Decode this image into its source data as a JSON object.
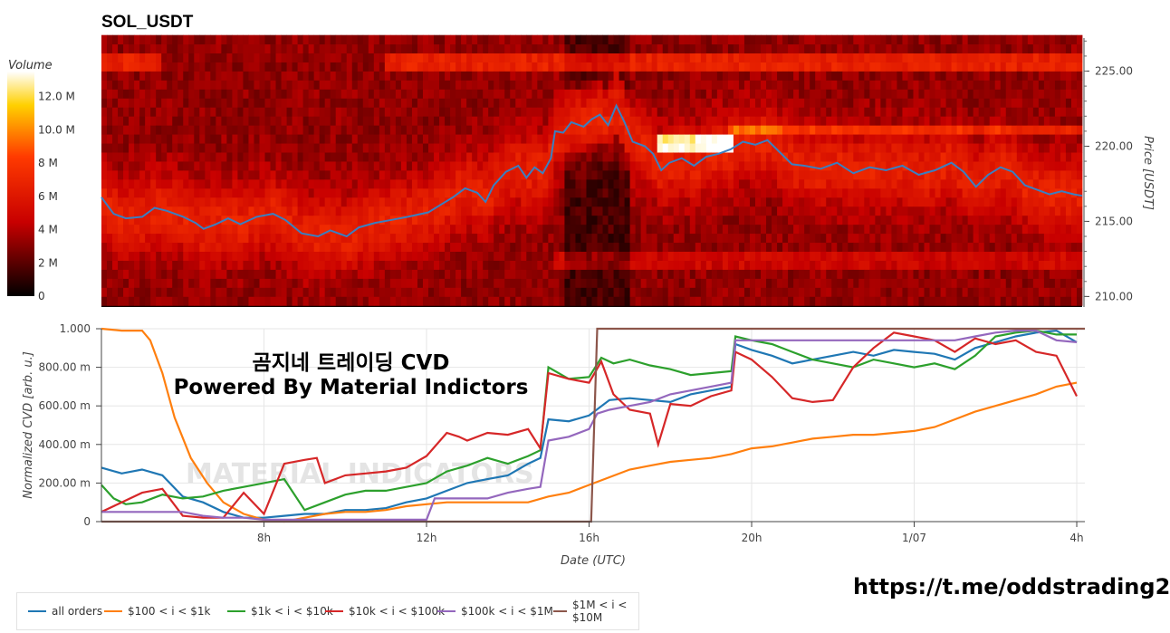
{
  "title": "SOL_USDT",
  "overlay": {
    "line1": "곰지네 트레이딩 CVD",
    "line2": "Powered By Material Indictors"
  },
  "watermark": "MATERIAL INDICATORS",
  "link": "https://t.me/oddstrading2",
  "colors": {
    "all_orders": "#1f77b4",
    "c100_1k": "#ff7f0e",
    "c1k_10k": "#2ca02c",
    "c10k_100k": "#d62728",
    "c100k_1m": "#9467bd",
    "c1m_10m": "#8c564b",
    "price_line": "#3a7fc1"
  },
  "chart_data": [
    {
      "type": "heatmap",
      "title": "SOL_USDT",
      "colorbar_label": "Volume",
      "colorbar_ticks": [
        "12.0 M",
        "10.0 M",
        "8 M",
        "6 M",
        "4 M",
        "2 M",
        "0"
      ],
      "colorbar_tick_values": [
        12,
        10,
        8,
        6,
        4,
        2,
        0
      ],
      "colorbar_range": [
        0,
        13.5
      ],
      "ylabel": "Price [USDT]",
      "y_ticks": [
        "225.00",
        "220.00",
        "215.00",
        "210.00"
      ],
      "y_tick_values": [
        225,
        220,
        215,
        210
      ],
      "ylim": [
        209.3,
        227.2
      ],
      "x_range": [
        4.0,
        28.0
      ],
      "price_series": [
        [
          4.0,
          216.6
        ],
        [
          4.3,
          215.5
        ],
        [
          4.6,
          215.2
        ],
        [
          5.0,
          215.3
        ],
        [
          5.3,
          215.9
        ],
        [
          5.6,
          215.7
        ],
        [
          6.0,
          215.3
        ],
        [
          6.3,
          214.9
        ],
        [
          6.5,
          214.5
        ],
        [
          6.8,
          214.8
        ],
        [
          7.1,
          215.2
        ],
        [
          7.4,
          214.8
        ],
        [
          7.8,
          215.3
        ],
        [
          8.2,
          215.5
        ],
        [
          8.5,
          215.1
        ],
        [
          8.9,
          214.2
        ],
        [
          9.3,
          214.0
        ],
        [
          9.6,
          214.4
        ],
        [
          10.0,
          214.0
        ],
        [
          10.3,
          214.6
        ],
        [
          10.7,
          214.9
        ],
        [
          11.1,
          215.1
        ],
        [
          11.5,
          215.3
        ],
        [
          12.0,
          215.6
        ],
        [
          12.3,
          216.1
        ],
        [
          12.6,
          216.6
        ],
        [
          12.9,
          217.2
        ],
        [
          13.2,
          216.9
        ],
        [
          13.4,
          216.3
        ],
        [
          13.6,
          217.4
        ],
        [
          13.9,
          218.3
        ],
        [
          14.2,
          218.7
        ],
        [
          14.4,
          217.9
        ],
        [
          14.6,
          218.6
        ],
        [
          14.8,
          218.2
        ],
        [
          15.0,
          219.2
        ],
        [
          15.1,
          221.0
        ],
        [
          15.3,
          220.9
        ],
        [
          15.5,
          221.6
        ],
        [
          15.8,
          221.3
        ],
        [
          16.0,
          221.8
        ],
        [
          16.2,
          222.1
        ],
        [
          16.4,
          221.4
        ],
        [
          16.6,
          222.7
        ],
        [
          16.8,
          221.6
        ],
        [
          17.0,
          220.3
        ],
        [
          17.3,
          220.0
        ],
        [
          17.5,
          219.5
        ],
        [
          17.7,
          218.4
        ],
        [
          17.9,
          218.9
        ],
        [
          18.2,
          219.2
        ],
        [
          18.5,
          218.7
        ],
        [
          18.8,
          219.3
        ],
        [
          19.1,
          219.5
        ],
        [
          19.4,
          219.8
        ],
        [
          19.7,
          220.3
        ],
        [
          20.0,
          220.1
        ],
        [
          20.3,
          220.4
        ],
        [
          20.6,
          219.6
        ],
        [
          20.9,
          218.8
        ],
        [
          21.2,
          218.7
        ],
        [
          21.6,
          218.5
        ],
        [
          22.0,
          218.9
        ],
        [
          22.4,
          218.2
        ],
        [
          22.8,
          218.6
        ],
        [
          23.2,
          218.4
        ],
        [
          23.6,
          218.7
        ],
        [
          24.0,
          218.1
        ],
        [
          24.4,
          218.4
        ],
        [
          24.8,
          218.9
        ],
        [
          25.1,
          218.3
        ],
        [
          25.4,
          217.3
        ],
        [
          25.7,
          218.1
        ],
        [
          26.0,
          218.6
        ],
        [
          26.3,
          218.3
        ],
        [
          26.6,
          217.4
        ],
        [
          26.9,
          217.1
        ],
        [
          27.2,
          216.8
        ],
        [
          27.5,
          217.0
        ],
        [
          27.8,
          216.8
        ],
        [
          28.0,
          216.7
        ]
      ]
    },
    {
      "type": "line",
      "xlabel": "Date (UTC)",
      "ylabel": "Normalized CVD [arb. u.]",
      "x_ticks": [
        "8h",
        "12h",
        "16h",
        "20h",
        "1/07",
        "4h"
      ],
      "x_tick_values": [
        8,
        12,
        16,
        20,
        24,
        28
      ],
      "xlim": [
        4.0,
        28.2
      ],
      "y_ticks": [
        "0",
        "200.00 m",
        "400.00 m",
        "600.00 m",
        "800.00 m",
        "1.000"
      ],
      "y_tick_values": [
        0,
        0.2,
        0.4,
        0.6,
        0.8,
        1.0
      ],
      "ylim": [
        0,
        1.0
      ],
      "legend_position": "bottom-left",
      "series": [
        {
          "name": "all orders",
          "color": "#1f77b4",
          "x": [
            4.0,
            4.5,
            5.0,
            5.5,
            6.0,
            6.5,
            7.0,
            7.5,
            8.0,
            8.5,
            9.0,
            9.5,
            10.0,
            10.5,
            11.0,
            11.5,
            12.0,
            12.5,
            13.0,
            13.5,
            14.0,
            14.5,
            14.8,
            15.0,
            15.5,
            16.0,
            16.5,
            17.0,
            17.5,
            18.0,
            18.5,
            19.0,
            19.5,
            19.6,
            20.0,
            20.5,
            21.0,
            21.5,
            22.0,
            22.5,
            23.0,
            23.5,
            24.0,
            24.5,
            25.0,
            25.5,
            26.0,
            26.5,
            27.0,
            27.5,
            28.0
          ],
          "y": [
            0.28,
            0.25,
            0.27,
            0.24,
            0.13,
            0.1,
            0.05,
            0.02,
            0.02,
            0.03,
            0.04,
            0.04,
            0.06,
            0.06,
            0.07,
            0.1,
            0.12,
            0.16,
            0.2,
            0.22,
            0.24,
            0.3,
            0.33,
            0.53,
            0.52,
            0.55,
            0.63,
            0.64,
            0.63,
            0.62,
            0.66,
            0.68,
            0.7,
            0.92,
            0.89,
            0.86,
            0.82,
            0.84,
            0.86,
            0.88,
            0.86,
            0.89,
            0.88,
            0.87,
            0.84,
            0.9,
            0.93,
            0.96,
            0.98,
            0.99,
            0.93
          ]
        },
        {
          "name": "$100 < i < $1k",
          "color": "#ff7f0e",
          "x": [
            4.0,
            4.5,
            5.0,
            5.2,
            5.5,
            5.8,
            6.2,
            6.6,
            7.0,
            7.5,
            8.0,
            8.5,
            9.0,
            9.5,
            10.0,
            10.5,
            11.0,
            11.5,
            12.0,
            12.5,
            13.0,
            13.5,
            14.0,
            14.5,
            15.0,
            15.5,
            16.0,
            16.5,
            17.0,
            17.5,
            18.0,
            18.5,
            19.0,
            19.5,
            20.0,
            20.5,
            21.0,
            21.5,
            22.0,
            22.5,
            23.0,
            23.5,
            24.0,
            24.5,
            25.0,
            25.5,
            26.0,
            26.5,
            27.0,
            27.5,
            28.0
          ],
          "y": [
            1.0,
            0.99,
            0.99,
            0.94,
            0.77,
            0.54,
            0.33,
            0.2,
            0.1,
            0.04,
            0.01,
            0.0,
            0.02,
            0.04,
            0.05,
            0.05,
            0.06,
            0.08,
            0.09,
            0.1,
            0.1,
            0.1,
            0.1,
            0.1,
            0.13,
            0.15,
            0.19,
            0.23,
            0.27,
            0.29,
            0.31,
            0.32,
            0.33,
            0.35,
            0.38,
            0.39,
            0.41,
            0.43,
            0.44,
            0.45,
            0.45,
            0.46,
            0.47,
            0.49,
            0.53,
            0.57,
            0.6,
            0.63,
            0.66,
            0.7,
            0.72
          ]
        },
        {
          "name": "$1k < i < $10k",
          "color": "#2ca02c",
          "x": [
            4.0,
            4.3,
            4.6,
            5.0,
            5.5,
            6.0,
            6.5,
            7.0,
            7.5,
            8.0,
            8.5,
            9.0,
            9.5,
            10.0,
            10.5,
            11.0,
            11.5,
            12.0,
            12.5,
            13.0,
            13.5,
            14.0,
            14.5,
            14.8,
            15.0,
            15.5,
            16.0,
            16.3,
            16.6,
            17.0,
            17.5,
            18.0,
            18.5,
            19.0,
            19.5,
            19.6,
            20.0,
            20.5,
            21.0,
            21.5,
            22.0,
            22.5,
            23.0,
            23.5,
            24.0,
            24.5,
            25.0,
            25.5,
            26.0,
            26.5,
            27.0,
            27.5,
            28.0
          ],
          "y": [
            0.19,
            0.12,
            0.09,
            0.1,
            0.14,
            0.12,
            0.13,
            0.16,
            0.18,
            0.2,
            0.22,
            0.06,
            0.1,
            0.14,
            0.16,
            0.16,
            0.18,
            0.2,
            0.26,
            0.29,
            0.33,
            0.3,
            0.34,
            0.37,
            0.8,
            0.74,
            0.75,
            0.85,
            0.82,
            0.84,
            0.81,
            0.79,
            0.76,
            0.77,
            0.78,
            0.96,
            0.94,
            0.92,
            0.88,
            0.84,
            0.82,
            0.8,
            0.84,
            0.82,
            0.8,
            0.82,
            0.79,
            0.86,
            0.96,
            0.98,
            0.99,
            0.97,
            0.97
          ]
        },
        {
          "name": "$10k < i < $100k",
          "color": "#d62728",
          "x": [
            4.0,
            4.5,
            5.0,
            5.5,
            6.0,
            6.5,
            7.0,
            7.5,
            8.0,
            8.5,
            9.0,
            9.3,
            9.5,
            10.0,
            10.5,
            11.0,
            11.5,
            12.0,
            12.5,
            12.8,
            13.0,
            13.5,
            14.0,
            14.5,
            14.8,
            15.0,
            15.5,
            16.0,
            16.3,
            16.6,
            17.0,
            17.5,
            17.7,
            18.0,
            18.5,
            19.0,
            19.5,
            19.6,
            20.0,
            20.5,
            21.0,
            21.5,
            22.0,
            22.5,
            23.0,
            23.5,
            24.0,
            24.5,
            25.0,
            25.5,
            26.0,
            26.5,
            27.0,
            27.5,
            28.0
          ],
          "y": [
            0.05,
            0.1,
            0.15,
            0.17,
            0.03,
            0.02,
            0.02,
            0.15,
            0.04,
            0.3,
            0.32,
            0.33,
            0.2,
            0.24,
            0.25,
            0.26,
            0.28,
            0.34,
            0.46,
            0.44,
            0.42,
            0.46,
            0.45,
            0.48,
            0.38,
            0.77,
            0.74,
            0.72,
            0.83,
            0.66,
            0.58,
            0.56,
            0.4,
            0.61,
            0.6,
            0.65,
            0.68,
            0.88,
            0.84,
            0.75,
            0.64,
            0.62,
            0.63,
            0.8,
            0.9,
            0.98,
            0.96,
            0.94,
            0.88,
            0.95,
            0.92,
            0.94,
            0.88,
            0.86,
            0.65
          ]
        },
        {
          "name": "$100k < i < $1M",
          "color": "#9467bd",
          "x": [
            4.0,
            4.5,
            5.0,
            5.5,
            6.0,
            6.5,
            7.0,
            7.5,
            8.0,
            8.5,
            9.0,
            9.5,
            10.0,
            10.5,
            11.0,
            11.5,
            12.0,
            12.2,
            12.5,
            13.0,
            13.5,
            14.0,
            14.5,
            14.8,
            15.0,
            15.5,
            16.0,
            16.2,
            16.5,
            17.0,
            17.5,
            18.0,
            18.5,
            19.0,
            19.5,
            19.6,
            20.0,
            20.5,
            21.0,
            21.5,
            22.0,
            22.5,
            23.0,
            23.5,
            24.0,
            24.5,
            25.0,
            25.5,
            26.0,
            26.5,
            27.0,
            27.5,
            28.0
          ],
          "y": [
            0.05,
            0.05,
            0.05,
            0.05,
            0.05,
            0.03,
            0.02,
            0.02,
            0.01,
            0.01,
            0.01,
            0.01,
            0.01,
            0.01,
            0.01,
            0.01,
            0.01,
            0.12,
            0.12,
            0.12,
            0.12,
            0.15,
            0.17,
            0.18,
            0.42,
            0.44,
            0.48,
            0.56,
            0.58,
            0.6,
            0.62,
            0.66,
            0.68,
            0.7,
            0.72,
            0.94,
            0.94,
            0.94,
            0.94,
            0.94,
            0.94,
            0.94,
            0.94,
            0.94,
            0.94,
            0.94,
            0.94,
            0.96,
            0.98,
            0.99,
            0.99,
            0.94,
            0.93
          ]
        },
        {
          "name": "$1M < i < $10M",
          "color": "#8c564b",
          "x": [
            4.0,
            15.9,
            16.05,
            16.2,
            28.2
          ],
          "y": [
            0.0,
            0.0,
            0.0,
            1.0,
            1.0
          ]
        }
      ]
    }
  ]
}
